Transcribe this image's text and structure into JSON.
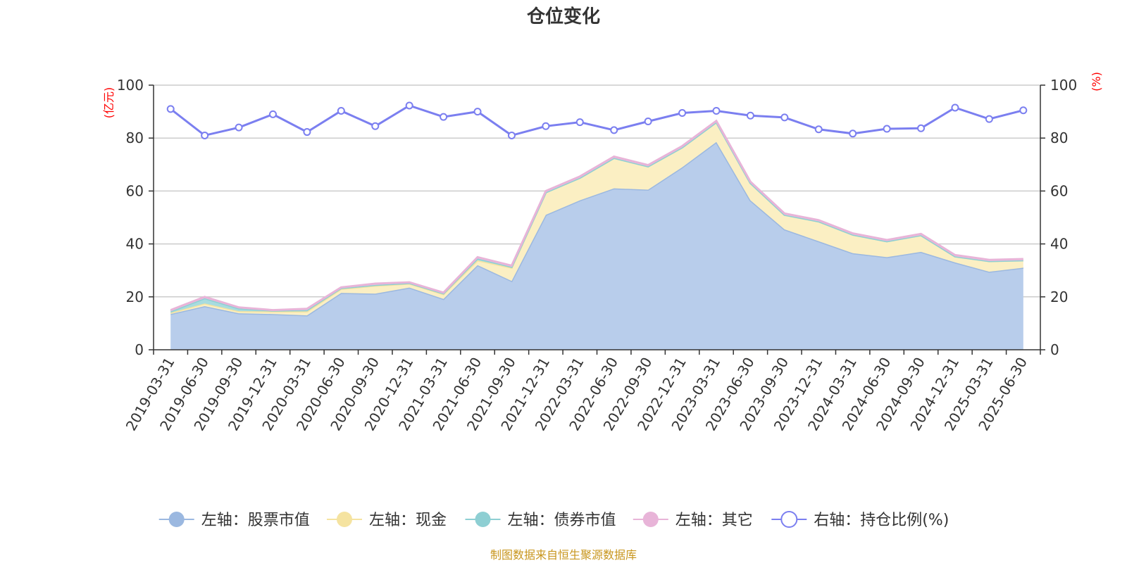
{
  "chart_data": {
    "type": "area",
    "title": "仓位变化",
    "left_unit": "(亿元)",
    "right_unit": "(%)",
    "source": "制图数据来自恒生聚源数据库",
    "categories": [
      "2019-03-31",
      "2019-06-30",
      "2019-09-30",
      "2019-12-31",
      "2020-03-31",
      "2020-06-30",
      "2020-09-30",
      "2020-12-31",
      "2021-03-31",
      "2021-06-30",
      "2021-09-30",
      "2021-12-31",
      "2022-03-31",
      "2022-06-30",
      "2022-09-30",
      "2022-12-31",
      "2023-03-31",
      "2023-06-30",
      "2023-09-30",
      "2023-12-31",
      "2024-03-31",
      "2024-06-30",
      "2024-09-30",
      "2024-12-31",
      "2025-03-31",
      "2025-06-30"
    ],
    "left_axis": {
      "min": 0,
      "max": 100,
      "ticks": [
        "0",
        "20",
        "40",
        "60",
        "80",
        "100"
      ]
    },
    "right_axis": {
      "min": 0,
      "max": 100,
      "ticks": [
        "0",
        "20",
        "40",
        "60",
        "80",
        "100"
      ]
    },
    "grid": true,
    "legend_position": "bottom",
    "series": [
      {
        "name": "左轴：股票市值",
        "axis": "left",
        "kind": "stacked-area",
        "color": "#9bb8e0",
        "fill": "#b8cdeb",
        "values": [
          13.5,
          16.5,
          13.8,
          13.5,
          13.0,
          21.5,
          21.2,
          23.5,
          19.2,
          32.0,
          26.0,
          51.0,
          56.5,
          61.0,
          60.5,
          69.0,
          78.5,
          56.5,
          45.5,
          41.0,
          36.5,
          35.0,
          37.0,
          33.0,
          29.5,
          31.0
        ]
      },
      {
        "name": "左轴：现金",
        "axis": "left",
        "kind": "stacked-area",
        "color": "#f5e3a0",
        "fill": "#fbefc3",
        "values": [
          0.5,
          1.0,
          0.8,
          1.0,
          1.5,
          1.5,
          3.0,
          1.5,
          1.8,
          1.8,
          5.0,
          8.5,
          8.5,
          11.5,
          8.8,
          7.5,
          7.5,
          6.5,
          5.5,
          7.5,
          7.0,
          6.0,
          6.3,
          2.3,
          4.0,
          2.8
        ]
      },
      {
        "name": "左轴：债券市值",
        "axis": "left",
        "kind": "stacked-area",
        "color": "#8ecfd3",
        "fill": "#a8dcdf",
        "values": [
          0.5,
          2.0,
          1.0,
          0.3,
          0.5,
          0.3,
          0.3,
          0.2,
          0.3,
          0.7,
          0.3,
          0,
          0,
          0,
          0,
          0,
          0,
          0,
          0,
          0,
          0,
          0,
          0,
          0,
          0,
          0
        ]
      },
      {
        "name": "左轴：其它",
        "axis": "left",
        "kind": "stacked-area",
        "color": "#e8b4d8",
        "fill": "#f0c8e2",
        "values": [
          0.5,
          0.5,
          0.4,
          0.2,
          0.5,
          0.3,
          0.5,
          0.3,
          0.3,
          0.5,
          0.5,
          0.5,
          0.5,
          0.5,
          0.5,
          0.5,
          0.5,
          0.5,
          0.5,
          0.5,
          0.5,
          0.5,
          0.5,
          0.5,
          0.5,
          0.5
        ]
      },
      {
        "name": "右轴：持仓比例(%)",
        "axis": "right",
        "kind": "line",
        "color": "#7b7ff0",
        "values": [
          91.0,
          81.0,
          84.0,
          89.0,
          82.3,
          90.3,
          84.5,
          92.3,
          88.0,
          90.0,
          81.0,
          84.5,
          86.0,
          83.0,
          86.3,
          89.5,
          90.3,
          88.5,
          87.8,
          83.3,
          81.7,
          83.5,
          83.7,
          91.5,
          87.2,
          90.5
        ]
      }
    ]
  }
}
